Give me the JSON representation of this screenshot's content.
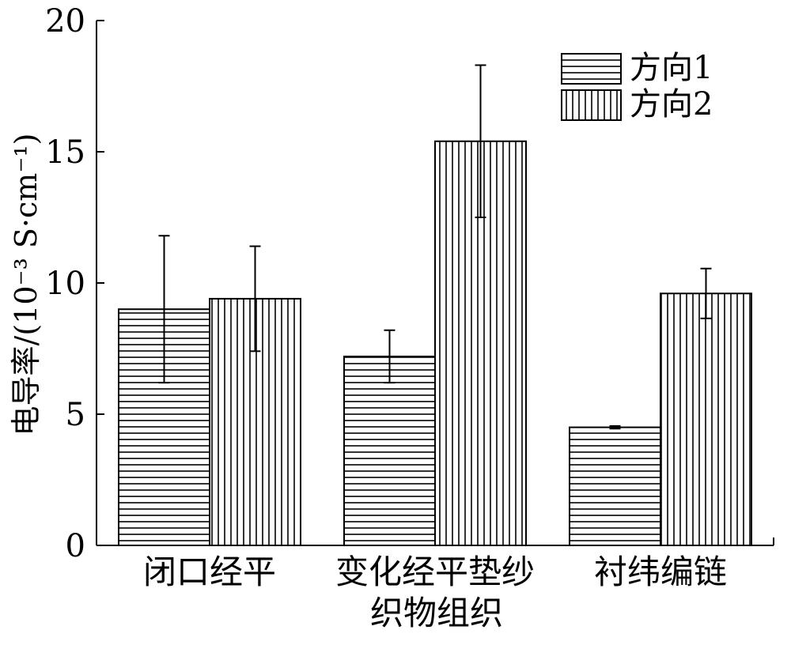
{
  "chart_data": {
    "type": "bar",
    "title": "",
    "ylabel": "电导率/(10⁻³ S·cm⁻¹)",
    "xlabel": "织物组织",
    "ylim": [
      0,
      20
    ],
    "yticks": [
      0,
      5,
      10,
      15,
      20
    ],
    "grid": false,
    "legend_position": "top-right",
    "categories": [
      "闭口经平",
      "变化经平垫纱",
      "衬纬编链"
    ],
    "series": [
      {
        "name": "方向1",
        "pattern": "horizontal-stripes",
        "values": [
          9.0,
          7.2,
          4.5
        ],
        "errors": [
          2.8,
          1.0,
          0.05
        ]
      },
      {
        "name": "方向2",
        "pattern": "vertical-stripes",
        "values": [
          9.4,
          15.4,
          9.6
        ],
        "errors": [
          2.0,
          2.9,
          0.95
        ]
      }
    ]
  }
}
